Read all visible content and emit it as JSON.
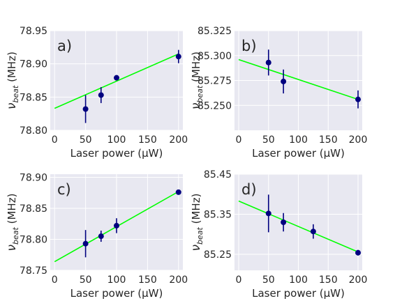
{
  "figure": {
    "background": "#ffffff",
    "plot_background": "#e8e8f1"
  },
  "chart_data": [
    {
      "type": "scatter",
      "panel_label": "a)",
      "xlabel": "Laser power (μW)",
      "ylabel": "ν_beat (MHz)",
      "xlim": [
        -7,
        207
      ],
      "ylim": [
        78.8,
        78.95
      ],
      "xticks": [
        0,
        50,
        100,
        150,
        200
      ],
      "xticklabels": [
        "0",
        "50",
        "100",
        "150",
        "200"
      ],
      "yticks": [
        78.8,
        78.85,
        78.9,
        78.95
      ],
      "yticklabels": [
        "78.80",
        "78.85",
        "78.90",
        "78.95"
      ],
      "grid": true,
      "points": [
        {
          "x": 50,
          "y": 78.832,
          "err": 0.021
        },
        {
          "x": 75,
          "y": 78.853,
          "err": 0.012
        },
        {
          "x": 100,
          "y": 78.879,
          "err": 0.004
        },
        {
          "x": 200,
          "y": 78.911,
          "err": 0.01
        }
      ],
      "fit_line": {
        "x": [
          0,
          200
        ],
        "y": [
          78.833,
          78.915
        ]
      },
      "point_color": "#00007f",
      "line_color": "#00ff00"
    },
    {
      "type": "scatter",
      "panel_label": "b)",
      "xlabel": "Laser power (μW)",
      "ylabel": "ν_beat (MHz)",
      "xlim": [
        -7,
        207
      ],
      "ylim": [
        85.225,
        85.325
      ],
      "xticks": [
        0,
        50,
        100,
        150,
        200
      ],
      "xticklabels": [
        "0",
        "50",
        "100",
        "150",
        "200"
      ],
      "yticks": [
        85.25,
        85.275,
        85.3,
        85.325
      ],
      "yticklabels": [
        "85.250",
        "85.275",
        "85.300",
        "85.325"
      ],
      "grid": true,
      "points": [
        {
          "x": 50,
          "y": 85.293,
          "err": 0.013
        },
        {
          "x": 75,
          "y": 85.274,
          "err": 0.012
        },
        {
          "x": 200,
          "y": 85.256,
          "err": 0.009
        }
      ],
      "fit_line": {
        "x": [
          0,
          200
        ],
        "y": [
          85.296,
          85.256
        ]
      },
      "point_color": "#00007f",
      "line_color": "#00ff00"
    },
    {
      "type": "scatter",
      "panel_label": "c)",
      "xlabel": "Laser power (μW)",
      "ylabel": "ν_beat (MHz)",
      "xlim": [
        -7,
        207
      ],
      "ylim": [
        78.75,
        78.905
      ],
      "xticks": [
        0,
        50,
        100,
        150,
        200
      ],
      "xticklabels": [
        "0",
        "50",
        "100",
        "150",
        "200"
      ],
      "yticks": [
        78.75,
        78.8,
        78.85,
        78.9
      ],
      "yticklabels": [
        "78.75",
        "78.80",
        "78.85",
        "78.90"
      ],
      "grid": true,
      "points": [
        {
          "x": 50,
          "y": 78.793,
          "err": 0.022
        },
        {
          "x": 75,
          "y": 78.805,
          "err": 0.009
        },
        {
          "x": 100,
          "y": 78.822,
          "err": 0.012
        },
        {
          "x": 200,
          "y": 78.876,
          "err": 0.004
        }
      ],
      "fit_line": {
        "x": [
          0,
          200
        ],
        "y": [
          78.764,
          78.877
        ]
      },
      "point_color": "#00007f",
      "line_color": "#00ff00"
    },
    {
      "type": "scatter",
      "panel_label": "d)",
      "xlabel": "Laser power (μW)",
      "ylabel": "ν_beat (MHz)",
      "xlim": [
        -7,
        207
      ],
      "ylim": [
        85.21,
        85.45
      ],
      "xticks": [
        0,
        50,
        100,
        150,
        200
      ],
      "xticklabels": [
        "0",
        "50",
        "100",
        "150",
        "200"
      ],
      "yticks": [
        85.25,
        85.35,
        85.45
      ],
      "yticklabels": [
        "85.25",
        "85.35",
        "85.45"
      ],
      "grid": true,
      "points": [
        {
          "x": 50,
          "y": 85.352,
          "err": 0.047
        },
        {
          "x": 75,
          "y": 85.33,
          "err": 0.023
        },
        {
          "x": 125,
          "y": 85.307,
          "err": 0.018
        },
        {
          "x": 200,
          "y": 85.254,
          "err": 0.007
        }
      ],
      "fit_line": {
        "x": [
          0,
          200
        ],
        "y": [
          85.383,
          85.256
        ]
      },
      "point_color": "#00007f",
      "line_color": "#00ff00"
    }
  ]
}
